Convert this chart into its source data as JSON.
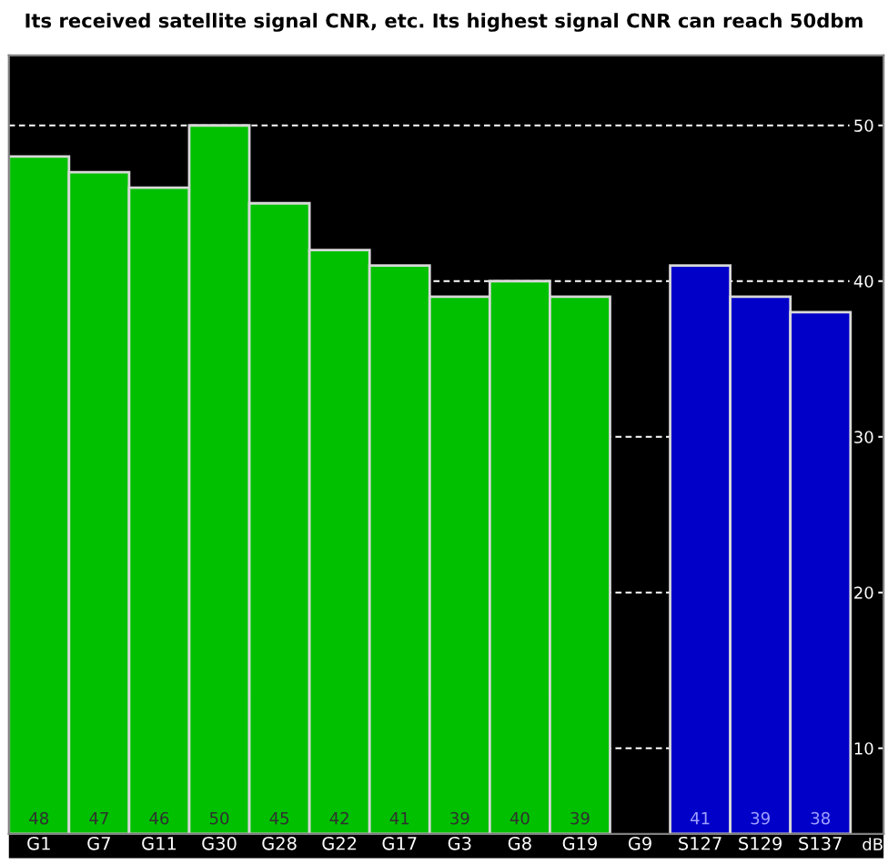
{
  "chart_data": {
    "type": "bar",
    "title": "Its received satellite signal CNR, etc. Its highest signal CNR can reach 50dbm",
    "categories": [
      "G1",
      "G7",
      "G11",
      "G30",
      "G28",
      "G22",
      "G17",
      "G3",
      "G8",
      "G19",
      "G9",
      "S127",
      "S129",
      "S137"
    ],
    "values": [
      48,
      47,
      46,
      50,
      45,
      42,
      41,
      39,
      40,
      39,
      null,
      41,
      39,
      38
    ],
    "colors": [
      "#00c000",
      "#00c000",
      "#00c000",
      "#00c000",
      "#00c000",
      "#00c000",
      "#00c000",
      "#00c000",
      "#00c000",
      "#00c000",
      "#00c000",
      "#0000c8",
      "#0000c8",
      "#0000c8"
    ],
    "value_labels": [
      "48",
      "47",
      "46",
      "50",
      "45",
      "42",
      "41",
      "39",
      "40",
      "39",
      null,
      "41",
      "39",
      "38"
    ],
    "annotations": [
      "dB"
    ],
    "ylim": [
      4.5,
      54.5
    ],
    "yticks": [
      10,
      20,
      30,
      40,
      50
    ],
    "grid": "y"
  }
}
